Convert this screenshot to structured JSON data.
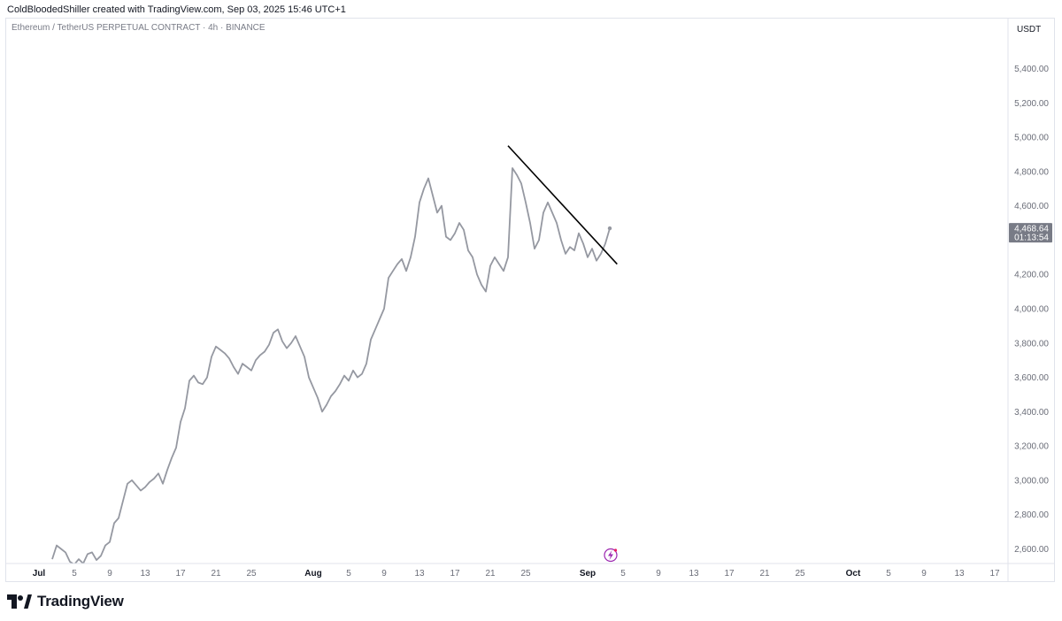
{
  "header": {
    "attribution": "ColdBloodedShiller created with TradingView.com, Sep 03, 2025 15:46 UTC+1"
  },
  "pane": {
    "symbol_title": "Ethereum / TetherUS PERPETUAL CONTRACT · 4h · BINANCE"
  },
  "price_axis": {
    "currency": "USDT",
    "last_price": "4,468.64",
    "countdown": "01:13:54"
  },
  "footer": {
    "brand": "TradingView"
  },
  "colors": {
    "series_line": "#9598a1",
    "trendline": "#000000",
    "last_price_badge": "#787b86",
    "lightning_icon": "#9c27b0"
  },
  "chart_data": {
    "type": "line",
    "title": "Ethereum / TetherUS PERPETUAL CONTRACT · 4h · BINANCE",
    "ylim": [
      2500,
      5800
    ],
    "y_ticks": [
      {
        "value": 2600,
        "label": "2,600.00"
      },
      {
        "value": 2800,
        "label": "2,800.00"
      },
      {
        "value": 3000,
        "label": "3,000.00"
      },
      {
        "value": 3200,
        "label": "3,200.00"
      },
      {
        "value": 3400,
        "label": "3,400.00"
      },
      {
        "value": 3600,
        "label": "3,600.00"
      },
      {
        "value": 3800,
        "label": "3,800.00"
      },
      {
        "value": 4000,
        "label": "4,000.00"
      },
      {
        "value": 4200,
        "label": "4,200.00"
      },
      {
        "value": 4600,
        "label": "4,600.00"
      },
      {
        "value": 4800,
        "label": "4,800.00"
      },
      {
        "value": 5000,
        "label": "5,000.00"
      },
      {
        "value": 5200,
        "label": "5,200.00"
      },
      {
        "value": 5400,
        "label": "5,400.00"
      }
    ],
    "x_ticks": [
      {
        "date": "2025-07-01",
        "label": "Jul",
        "month": true
      },
      {
        "date": "2025-07-05",
        "label": "5"
      },
      {
        "date": "2025-07-09",
        "label": "9"
      },
      {
        "date": "2025-07-13",
        "label": "13"
      },
      {
        "date": "2025-07-17",
        "label": "17"
      },
      {
        "date": "2025-07-21",
        "label": "21"
      },
      {
        "date": "2025-07-25",
        "label": "25"
      },
      {
        "date": "2025-08-01",
        "label": "Aug",
        "month": true
      },
      {
        "date": "2025-08-05",
        "label": "5"
      },
      {
        "date": "2025-08-09",
        "label": "9"
      },
      {
        "date": "2025-08-13",
        "label": "13"
      },
      {
        "date": "2025-08-17",
        "label": "17"
      },
      {
        "date": "2025-08-21",
        "label": "21"
      },
      {
        "date": "2025-08-25",
        "label": "25"
      },
      {
        "date": "2025-09-01",
        "label": "Sep",
        "month": true
      },
      {
        "date": "2025-09-05",
        "label": "5"
      },
      {
        "date": "2025-09-09",
        "label": "9"
      },
      {
        "date": "2025-09-13",
        "label": "13"
      },
      {
        "date": "2025-09-17",
        "label": "17"
      },
      {
        "date": "2025-09-21",
        "label": "21"
      },
      {
        "date": "2025-09-25",
        "label": "25"
      },
      {
        "date": "2025-10-01",
        "label": "Oct",
        "month": true
      },
      {
        "date": "2025-10-05",
        "label": "5"
      },
      {
        "date": "2025-10-09",
        "label": "9"
      },
      {
        "date": "2025-10-13",
        "label": "13"
      },
      {
        "date": "2025-10-17",
        "label": "17"
      }
    ],
    "series": [
      {
        "points": [
          [
            "2025-07-02 12:00",
            2540
          ],
          [
            "2025-07-03 00:00",
            2620
          ],
          [
            "2025-07-03 12:00",
            2600
          ],
          [
            "2025-07-04 00:00",
            2580
          ],
          [
            "2025-07-04 12:00",
            2525
          ],
          [
            "2025-07-05 00:00",
            2510
          ],
          [
            "2025-07-05 12:00",
            2540
          ],
          [
            "2025-07-06 00:00",
            2515
          ],
          [
            "2025-07-06 12:00",
            2570
          ],
          [
            "2025-07-07 00:00",
            2580
          ],
          [
            "2025-07-07 12:00",
            2535
          ],
          [
            "2025-07-08 00:00",
            2560
          ],
          [
            "2025-07-08 12:00",
            2620
          ],
          [
            "2025-07-09 00:00",
            2640
          ],
          [
            "2025-07-09 12:00",
            2750
          ],
          [
            "2025-07-10 00:00",
            2780
          ],
          [
            "2025-07-10 12:00",
            2880
          ],
          [
            "2025-07-11 00:00",
            2980
          ],
          [
            "2025-07-11 12:00",
            3000
          ],
          [
            "2025-07-12 00:00",
            2970
          ],
          [
            "2025-07-12 12:00",
            2940
          ],
          [
            "2025-07-13 00:00",
            2960
          ],
          [
            "2025-07-13 12:00",
            2990
          ],
          [
            "2025-07-14 00:00",
            3010
          ],
          [
            "2025-07-14 12:00",
            3040
          ],
          [
            "2025-07-15 00:00",
            2980
          ],
          [
            "2025-07-15 12:00",
            3060
          ],
          [
            "2025-07-16 00:00",
            3130
          ],
          [
            "2025-07-16 12:00",
            3190
          ],
          [
            "2025-07-17 00:00",
            3340
          ],
          [
            "2025-07-17 12:00",
            3420
          ],
          [
            "2025-07-18 00:00",
            3580
          ],
          [
            "2025-07-18 12:00",
            3610
          ],
          [
            "2025-07-19 00:00",
            3570
          ],
          [
            "2025-07-19 12:00",
            3560
          ],
          [
            "2025-07-20 00:00",
            3600
          ],
          [
            "2025-07-20 12:00",
            3720
          ],
          [
            "2025-07-21 00:00",
            3780
          ],
          [
            "2025-07-21 12:00",
            3760
          ],
          [
            "2025-07-22 00:00",
            3740
          ],
          [
            "2025-07-22 12:00",
            3710
          ],
          [
            "2025-07-23 00:00",
            3660
          ],
          [
            "2025-07-23 12:00",
            3620
          ],
          [
            "2025-07-24 00:00",
            3680
          ],
          [
            "2025-07-24 12:00",
            3660
          ],
          [
            "2025-07-25 00:00",
            3640
          ],
          [
            "2025-07-25 12:00",
            3700
          ],
          [
            "2025-07-26 00:00",
            3730
          ],
          [
            "2025-07-26 12:00",
            3750
          ],
          [
            "2025-07-27 00:00",
            3790
          ],
          [
            "2025-07-27 12:00",
            3860
          ],
          [
            "2025-07-28 00:00",
            3880
          ],
          [
            "2025-07-28 12:00",
            3810
          ],
          [
            "2025-07-29 00:00",
            3770
          ],
          [
            "2025-07-29 12:00",
            3800
          ],
          [
            "2025-07-30 00:00",
            3840
          ],
          [
            "2025-07-30 12:00",
            3780
          ],
          [
            "2025-07-31 00:00",
            3720
          ],
          [
            "2025-07-31 12:00",
            3600
          ],
          [
            "2025-08-01 00:00",
            3540
          ],
          [
            "2025-08-01 12:00",
            3480
          ],
          [
            "2025-08-02 00:00",
            3400
          ],
          [
            "2025-08-02 12:00",
            3440
          ],
          [
            "2025-08-03 00:00",
            3490
          ],
          [
            "2025-08-03 12:00",
            3520
          ],
          [
            "2025-08-04 00:00",
            3560
          ],
          [
            "2025-08-04 12:00",
            3610
          ],
          [
            "2025-08-05 00:00",
            3580
          ],
          [
            "2025-08-05 12:00",
            3640
          ],
          [
            "2025-08-06 00:00",
            3600
          ],
          [
            "2025-08-06 12:00",
            3620
          ],
          [
            "2025-08-07 00:00",
            3680
          ],
          [
            "2025-08-07 12:00",
            3820
          ],
          [
            "2025-08-08 00:00",
            3880
          ],
          [
            "2025-08-08 12:00",
            3940
          ],
          [
            "2025-08-09 00:00",
            4000
          ],
          [
            "2025-08-09 12:00",
            4180
          ],
          [
            "2025-08-10 00:00",
            4220
          ],
          [
            "2025-08-10 12:00",
            4260
          ],
          [
            "2025-08-11 00:00",
            4290
          ],
          [
            "2025-08-11 12:00",
            4220
          ],
          [
            "2025-08-12 00:00",
            4300
          ],
          [
            "2025-08-12 12:00",
            4420
          ],
          [
            "2025-08-13 00:00",
            4620
          ],
          [
            "2025-08-13 12:00",
            4700
          ],
          [
            "2025-08-14 00:00",
            4760
          ],
          [
            "2025-08-14 12:00",
            4660
          ],
          [
            "2025-08-15 00:00",
            4560
          ],
          [
            "2025-08-15 12:00",
            4600
          ],
          [
            "2025-08-16 00:00",
            4420
          ],
          [
            "2025-08-16 12:00",
            4400
          ],
          [
            "2025-08-17 00:00",
            4440
          ],
          [
            "2025-08-17 12:00",
            4500
          ],
          [
            "2025-08-18 00:00",
            4460
          ],
          [
            "2025-08-18 12:00",
            4340
          ],
          [
            "2025-08-19 00:00",
            4300
          ],
          [
            "2025-08-19 12:00",
            4200
          ],
          [
            "2025-08-20 00:00",
            4140
          ],
          [
            "2025-08-20 12:00",
            4100
          ],
          [
            "2025-08-21 00:00",
            4250
          ],
          [
            "2025-08-21 12:00",
            4300
          ],
          [
            "2025-08-22 00:00",
            4260
          ],
          [
            "2025-08-22 12:00",
            4220
          ],
          [
            "2025-08-23 00:00",
            4300
          ],
          [
            "2025-08-23 12:00",
            4820
          ],
          [
            "2025-08-24 00:00",
            4780
          ],
          [
            "2025-08-24 12:00",
            4730
          ],
          [
            "2025-08-25 00:00",
            4620
          ],
          [
            "2025-08-25 12:00",
            4500
          ],
          [
            "2025-08-26 00:00",
            4350
          ],
          [
            "2025-08-26 12:00",
            4400
          ],
          [
            "2025-08-27 00:00",
            4560
          ],
          [
            "2025-08-27 12:00",
            4620
          ],
          [
            "2025-08-28 00:00",
            4560
          ],
          [
            "2025-08-28 12:00",
            4500
          ],
          [
            "2025-08-29 00:00",
            4400
          ],
          [
            "2025-08-29 12:00",
            4320
          ],
          [
            "2025-08-30 00:00",
            4360
          ],
          [
            "2025-08-30 12:00",
            4340
          ],
          [
            "2025-08-31 00:00",
            4440
          ],
          [
            "2025-08-31 12:00",
            4380
          ],
          [
            "2025-09-01 00:00",
            4300
          ],
          [
            "2025-09-01 12:00",
            4350
          ],
          [
            "2025-09-02 00:00",
            4280
          ],
          [
            "2025-09-02 12:00",
            4320
          ],
          [
            "2025-09-03 00:00",
            4380
          ],
          [
            "2025-09-03 12:00",
            4468.64
          ]
        ]
      }
    ],
    "trendline": {
      "start": [
        "2025-08-23 00:00",
        4950
      ],
      "end": [
        "2025-09-04 08:00",
        4260
      ]
    }
  }
}
